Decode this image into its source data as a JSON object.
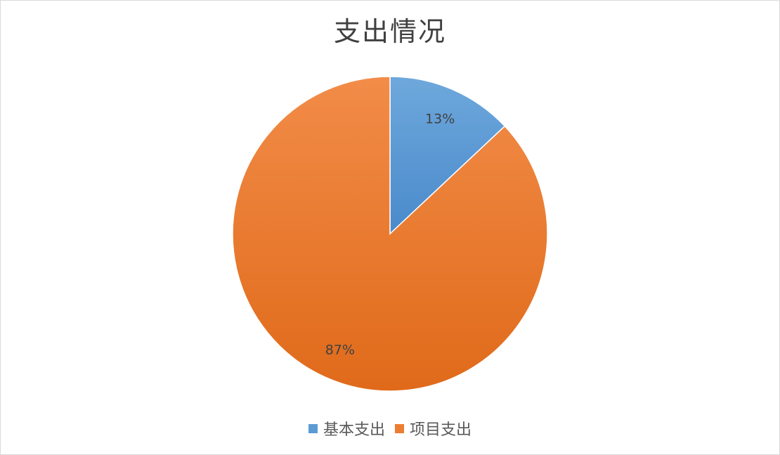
{
  "chart_data": {
    "type": "pie",
    "title": "支出情况",
    "categories": [
      "基本支出",
      "项目支出"
    ],
    "values": [
      13,
      87
    ],
    "data_labels": [
      "13%",
      "87%"
    ],
    "colors": [
      "#5b9bd5",
      "#ed7d31"
    ],
    "legend_position": "bottom"
  }
}
